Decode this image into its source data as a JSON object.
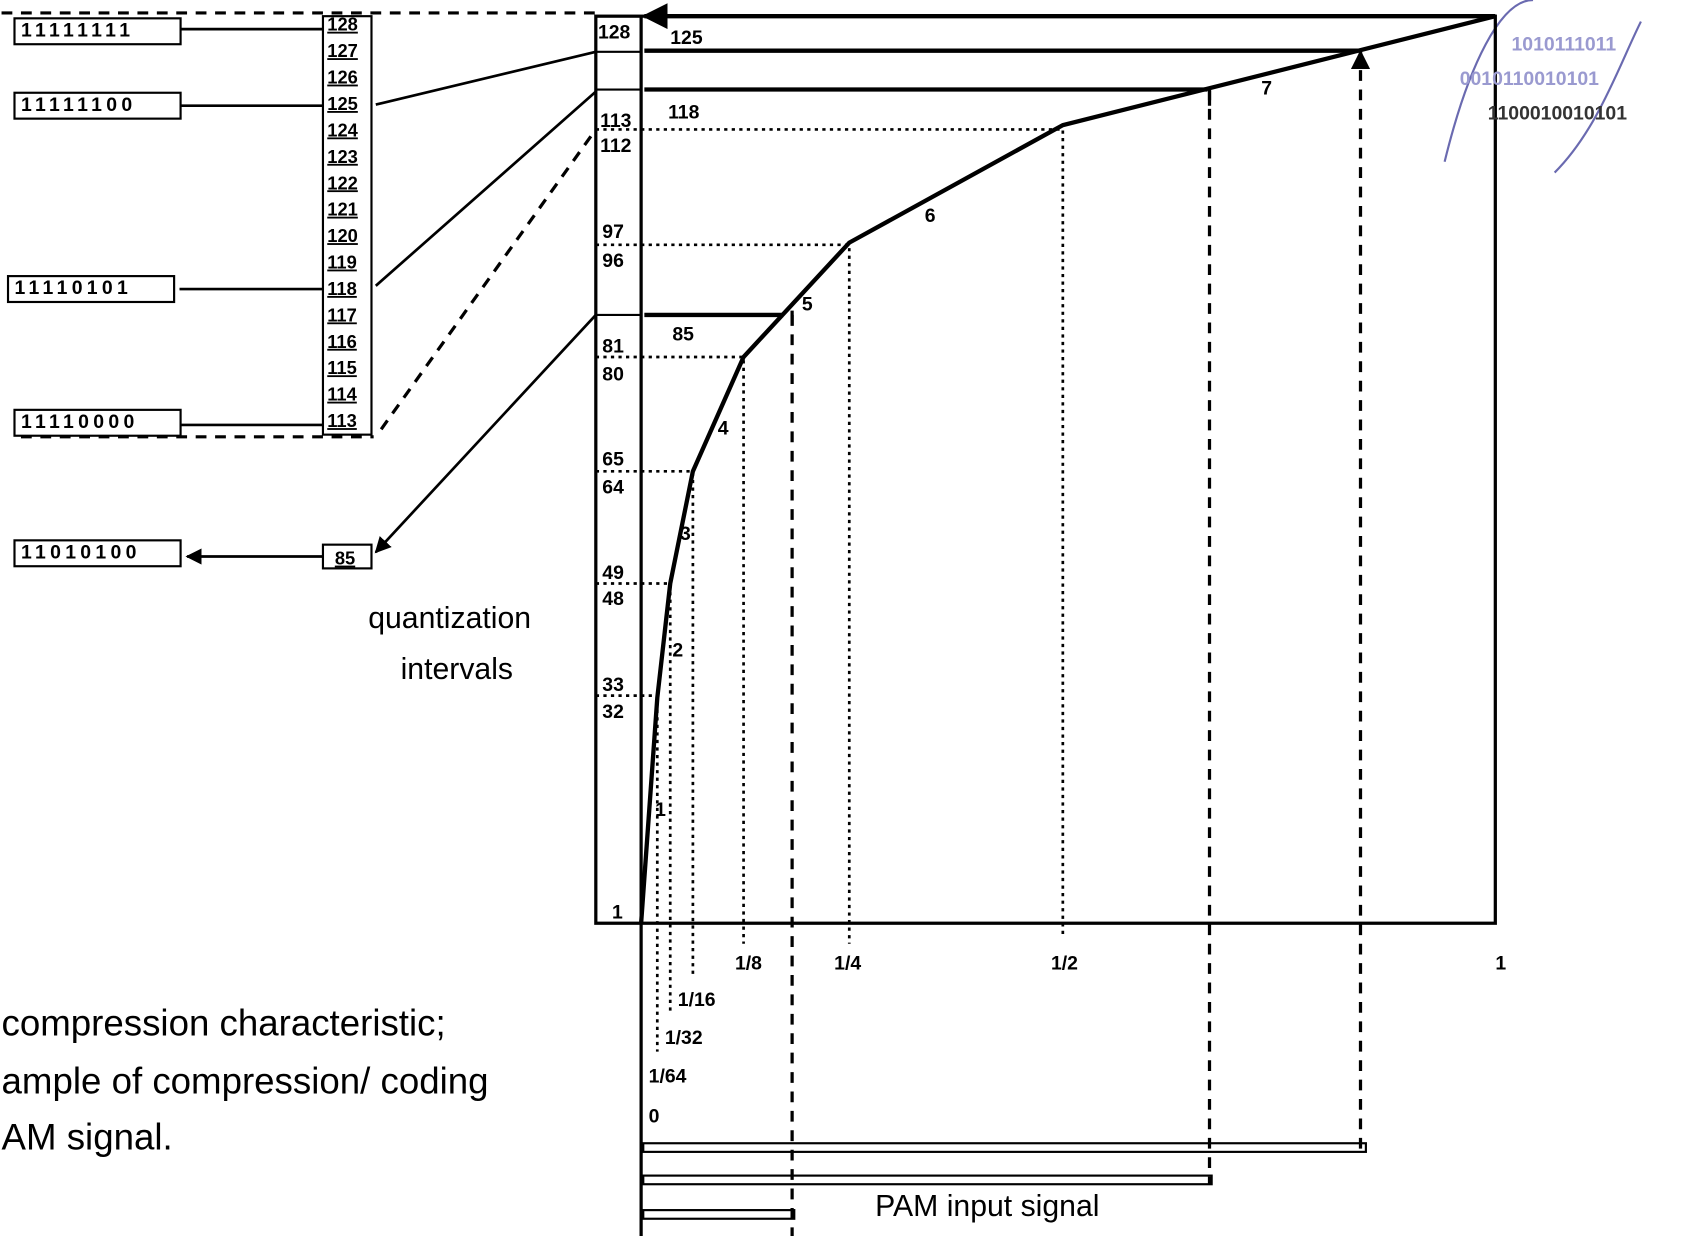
{
  "codewords": [
    "11111111",
    "11111100",
    "11110101",
    "11110000",
    "11010100"
  ],
  "levels": [
    "128",
    "127",
    "126",
    "125",
    "124",
    "123",
    "122",
    "121",
    "120",
    "119",
    "118",
    "117",
    "116",
    "115",
    "114",
    "113"
  ],
  "sample_level": "85",
  "y_labels": [
    "128",
    "125",
    "118",
    "113",
    "112",
    "97",
    "96",
    "81",
    "80",
    "65",
    "64",
    "49",
    "48",
    "33",
    "32",
    "1",
    "85"
  ],
  "x_labels": [
    "1/8",
    "1/4",
    "1/2",
    "1",
    "1/16",
    "1/32",
    "1/64",
    "0"
  ],
  "segments": [
    "1",
    "2",
    "3",
    "4",
    "5",
    "6",
    "7"
  ],
  "axis_title": [
    "quantization",
    "intervals"
  ],
  "input_label": "PAM input signal",
  "caption": [
    "compression characteristic;",
    "ample of compression/ coding",
    "AM signal."
  ],
  "logo": [
    "1010111011",
    "0010110010101",
    "1100010010101"
  ]
}
